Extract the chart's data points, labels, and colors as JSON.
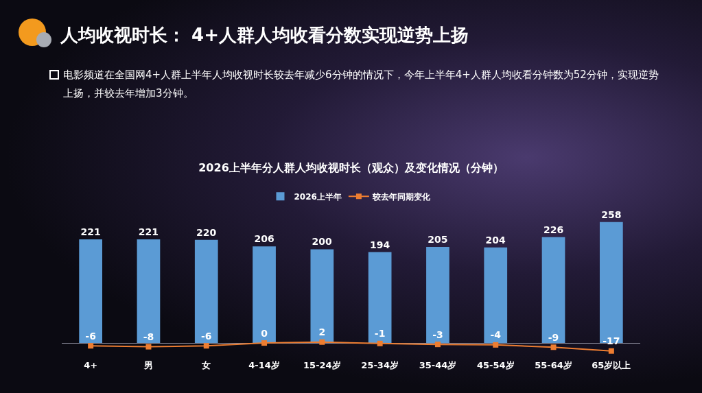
{
  "chart_data": {
    "type": "bar",
    "title": "2026上半年分人群人均收视时长（观众）及变化情况（分钟）",
    "annotations": [
      "人均收视时长： 4+人群人均收看分数实现逆势上扬",
      "电影频道在全国网4+人群上半年人均收视时长较去年减少6分钟的情况下，今年上半年4+人群人均收看分钟数为52分钟，实现逆势上扬，并较去年增加3分钟。"
    ],
    "categories": [
      "4+",
      "男",
      "女",
      "4-14岁",
      "15-24岁",
      "25-34岁",
      "35-44岁",
      "45-54岁",
      "55-64岁",
      "65岁以上"
    ],
    "series": [
      {
        "name": "2026上半年",
        "color": "#5b9bd5",
        "values": [
          221,
          221,
          220,
          206,
          200,
          194,
          205,
          204,
          226,
          258
        ]
      },
      {
        "name": "较去年同期变化",
        "type": "line",
        "color": "#ed7d31",
        "marker": "square",
        "values": [
          -6,
          -8,
          -6,
          0,
          2,
          -1,
          -3,
          -4,
          -9,
          -17
        ]
      }
    ],
    "data_labels": true,
    "legend": "top",
    "grid": false
  }
}
